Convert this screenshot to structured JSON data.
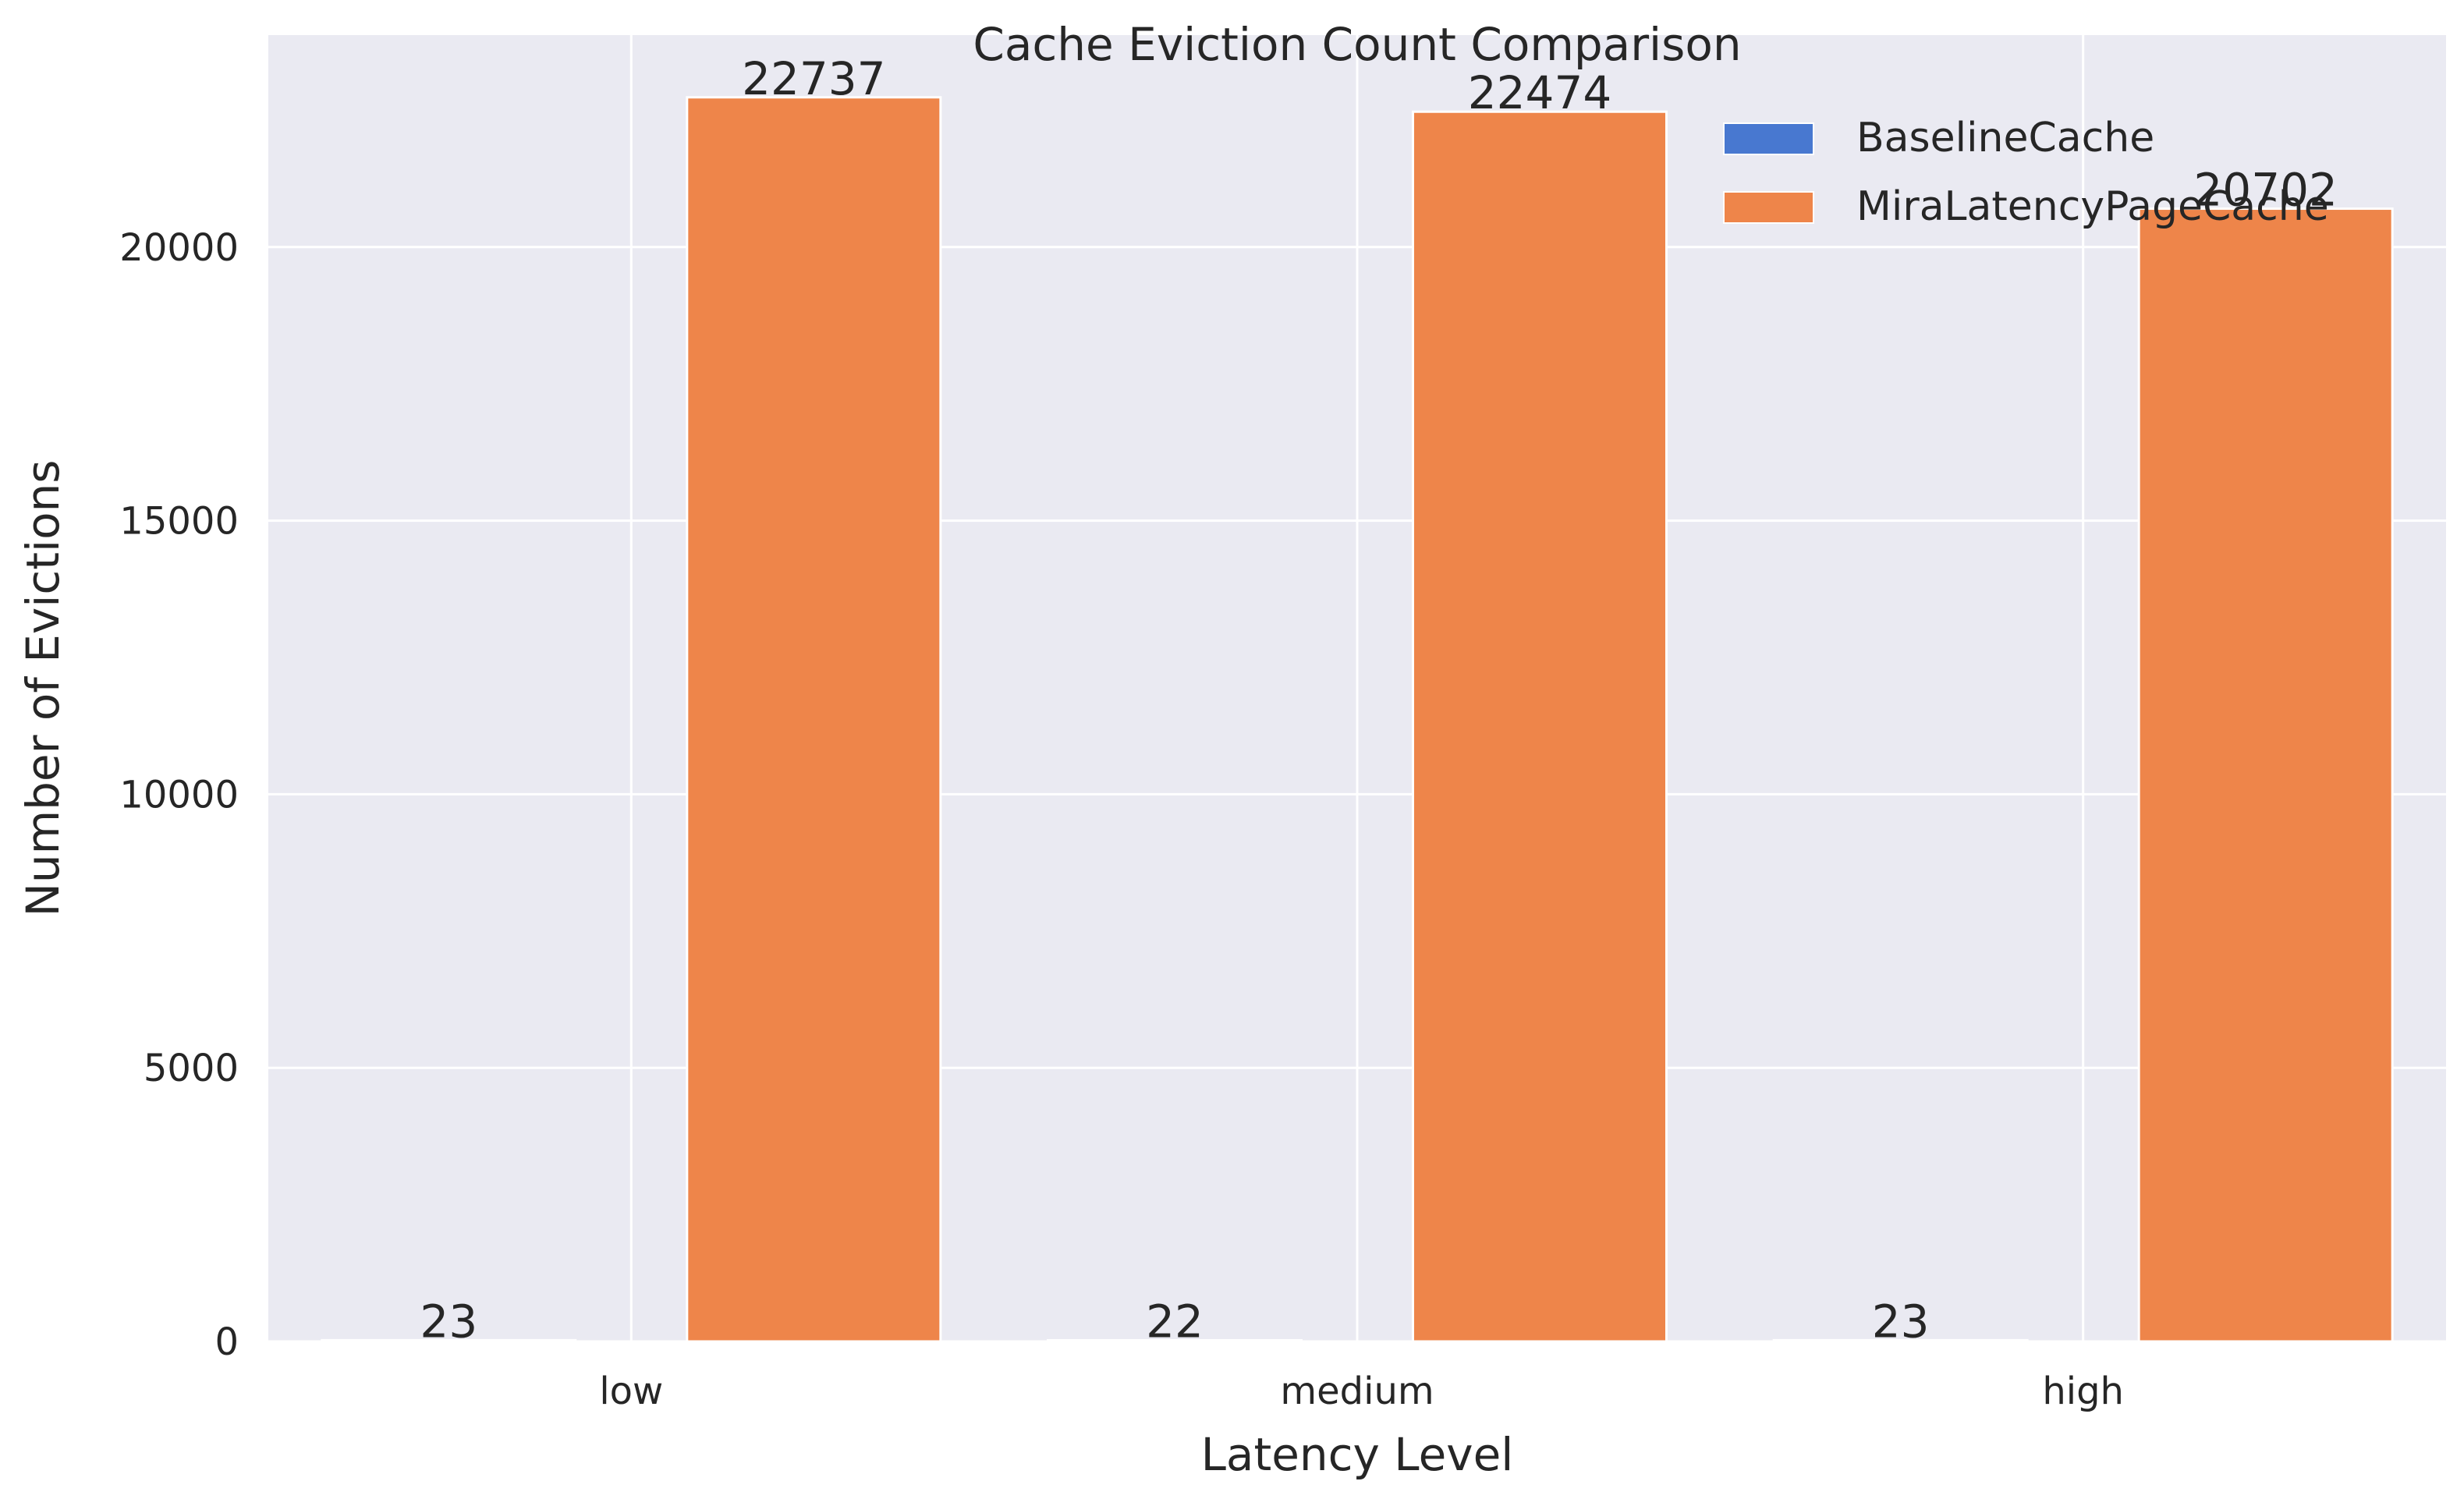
{
  "chart_data": {
    "type": "bar",
    "title": "Cache Eviction Count Comparison",
    "xlabel": "Latency Level",
    "ylabel": "Number of Evictions",
    "categories": [
      "low",
      "medium",
      "high"
    ],
    "series": [
      {
        "name": "BaselineCache",
        "values": [
          23,
          22,
          23
        ],
        "color": "#4878d0"
      },
      {
        "name": "MiraLatencyPageCache",
        "values": [
          22737,
          22474,
          20702
        ],
        "color": "#ee854a"
      }
    ],
    "ylim": [
      0,
      23874
    ],
    "yticks": [
      0,
      5000,
      10000,
      15000,
      20000
    ],
    "grid": true,
    "legend_position": "top-right",
    "background": "#eaeaf2"
  }
}
